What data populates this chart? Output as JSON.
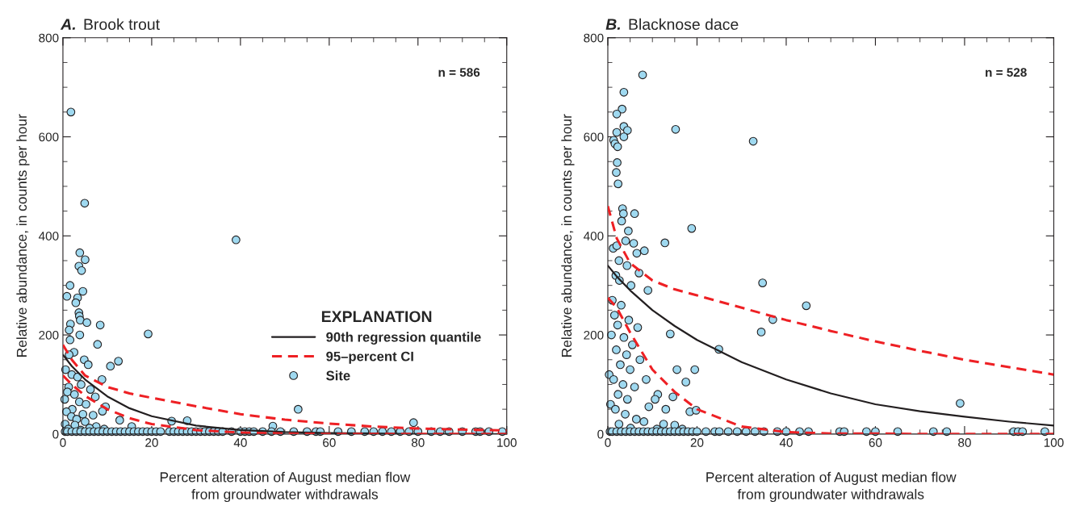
{
  "chart_data": [
    {
      "type": "scatter",
      "title": "A. Brook trout",
      "xlabel": "Percent alteration of August median flow\nfrom groundwater withdrawals",
      "ylabel": "Relative abundance, in counts per hour",
      "legend_title": "EXPLANATION",
      "legend": "right",
      "grid": false,
      "annotations": [
        "n = 586"
      ],
      "xlim": [
        0,
        100
      ],
      "xticks": [
        0,
        20,
        40,
        60,
        80,
        100
      ],
      "ylim": [
        0,
        800
      ],
      "yticks": [
        0,
        200,
        400,
        600,
        800
      ],
      "series": [
        {
          "name": "Site",
          "color": "#9fd9f0",
          "marker": "circle",
          "x": [
            1.8,
            4.9,
            39,
            3.8,
            5.0,
            3.6,
            4.2,
            1.6,
            0.9,
            4.5,
            3.3,
            2.9,
            3.6,
            3.7,
            3.9,
            5.4,
            1.7,
            1.4,
            8.4,
            19.2,
            3.8,
            1.6,
            7.8,
            2.5,
            1.4,
            4.8,
            5.7,
            10.7,
            12.5,
            0.6,
            2.0,
            3.3,
            8.8,
            4.1,
            1.3,
            6.2,
            1.0,
            2.6,
            7.3,
            0.4,
            3.7,
            5.2,
            9.6,
            2.1,
            8.9,
            0.8,
            4.5,
            6.8,
            12.8,
            1.9,
            3.1,
            5.0,
            0.5,
            2.7,
            7.5,
            9.3,
            15.5,
            24.5,
            28,
            53,
            79,
            47.3,
            1.2,
            4.0,
            6.0,
            0.5,
            1,
            2,
            3,
            4,
            5,
            6,
            7,
            8,
            9,
            10,
            11,
            12,
            13,
            14,
            15,
            16,
            17,
            18,
            19,
            20,
            21,
            22,
            24,
            25,
            26,
            27,
            28,
            29,
            30,
            31,
            32,
            33,
            34,
            35,
            36,
            38,
            40,
            41,
            42,
            43,
            45,
            47,
            49,
            52,
            55,
            57,
            58,
            62,
            65,
            68,
            70,
            72,
            74,
            76,
            78,
            80,
            83,
            85,
            87,
            90,
            93,
            94,
            96,
            99
          ],
          "values": [
            650,
            466,
            392,
            366,
            352,
            339,
            330,
            300,
            278,
            288,
            275,
            265,
            245,
            238,
            230,
            225,
            222,
            210,
            220,
            202,
            200,
            190,
            181,
            165,
            160,
            150,
            140,
            137,
            147,
            130,
            120,
            115,
            110,
            100,
            95,
            90,
            85,
            80,
            75,
            70,
            65,
            60,
            55,
            50,
            46,
            45,
            40,
            38,
            28,
            35,
            30,
            25,
            20,
            18,
            15,
            10,
            15,
            26,
            27,
            50,
            23,
            16,
            10,
            8,
            12,
            5,
            5,
            5,
            5,
            5,
            5,
            5,
            5,
            5,
            5,
            5,
            5,
            5,
            5,
            5,
            5,
            5,
            5,
            5,
            5,
            5,
            5,
            5,
            5,
            5,
            5,
            5,
            5,
            5,
            5,
            5,
            5,
            5,
            5,
            5,
            5,
            5,
            5,
            5,
            5,
            5,
            5,
            5,
            5,
            5,
            5,
            5,
            5,
            5,
            5,
            5,
            5,
            5,
            5,
            5,
            5,
            5,
            5,
            5,
            5,
            5,
            5,
            5,
            5,
            5
          ]
        },
        {
          "type": "line",
          "name": "90th regression quantile",
          "color": "#231f20",
          "line_style": "solid",
          "x": [
            0,
            2,
            5,
            10,
            15,
            20,
            30,
            40,
            50,
            60,
            70,
            80,
            90,
            100
          ],
          "values": [
            160,
            137,
            110,
            76,
            52,
            36,
            17,
            8,
            4,
            2,
            1,
            0,
            0,
            0
          ]
        },
        {
          "type": "line",
          "name": "95–percent CI",
          "color": "#ee2024",
          "line_style": "dashed",
          "x": [
            0,
            2,
            5,
            10,
            15,
            20,
            30,
            40,
            50,
            60,
            70,
            80,
            90,
            100
          ],
          "values": [
            180,
            150,
            118,
            95,
            82,
            73,
            56,
            40,
            29,
            21,
            15,
            11,
            9,
            7
          ]
        },
        {
          "type": "line",
          "color": "#ee2024",
          "line_style": "dashed",
          "x": [
            0,
            2,
            5,
            10,
            15,
            20,
            30,
            40,
            50,
            60,
            70,
            80,
            90,
            100
          ],
          "values": [
            118,
            100,
            77,
            50,
            32,
            20,
            8,
            3,
            1,
            0,
            0,
            0,
            0,
            0
          ]
        }
      ]
    },
    {
      "type": "scatter",
      "title": "B. Blacknose dace",
      "xlabel": "Percent alteration of August median flow\nfrom groundwater withdrawals",
      "ylabel": "Relative abundance, in counts per hour",
      "grid": false,
      "annotations": [
        "n = 528"
      ],
      "xlim": [
        0,
        100
      ],
      "xticks": [
        0,
        20,
        40,
        60,
        80,
        100
      ],
      "ylim": [
        0,
        800
      ],
      "yticks": [
        0,
        200,
        400,
        600,
        800
      ],
      "series": [
        {
          "color": "#9fd9f0",
          "marker": "circle",
          "x": [
            7.8,
            3.6,
            3.2,
            2.0,
            15.2,
            32.6,
            3.6,
            4.4,
            2.0,
            3.6,
            1.3,
            1.6,
            2.2,
            2.1,
            1.9,
            2.3,
            3.3,
            3.5,
            3.1,
            6.0,
            4.6,
            18.8,
            12.8,
            4.0,
            5.8,
            8.2,
            1.2,
            2.0,
            6.5,
            2.5,
            4.3,
            7.0,
            1.8,
            2.6,
            5.2,
            9.0,
            34.7,
            44.5,
            37,
            34.4,
            24.9,
            14,
            79,
            1.0,
            3.0,
            1.5,
            4.7,
            2.2,
            6.7,
            0.8,
            3.6,
            5.5,
            1.9,
            4.2,
            7.2,
            2.8,
            0.3,
            5.0,
            1.3,
            3.4,
            6.0,
            8.6,
            15.5,
            19.5,
            11.2,
            17.5,
            14.6,
            10.6,
            13,
            9.2,
            18.4,
            19.8,
            2.3,
            4.4,
            0.6,
            1.7,
            3.9,
            6.4,
            8.1,
            12.5,
            15,
            16.7,
            2.5,
            5.1,
            11,
            0.5,
            1,
            2,
            3,
            4,
            5,
            6,
            7,
            8,
            9,
            10,
            11,
            12,
            13,
            14,
            15,
            16,
            17,
            18,
            19,
            20,
            22,
            24,
            25,
            27,
            29,
            31,
            33,
            35,
            38,
            40,
            43,
            45,
            52,
            53,
            58,
            60,
            65,
            73,
            76,
            91,
            92,
            93,
            98
          ],
          "values": [
            725,
            690,
            656,
            646,
            615,
            591,
            621,
            613,
            609,
            600,
            593,
            586,
            580,
            548,
            528,
            505,
            455,
            445,
            430,
            445,
            410,
            415,
            386,
            390,
            385,
            370,
            375,
            380,
            365,
            350,
            340,
            325,
            320,
            310,
            300,
            290,
            305,
            259,
            231,
            206,
            171,
            202,
            62,
            270,
            260,
            240,
            230,
            220,
            215,
            200,
            195,
            180,
            170,
            160,
            150,
            140,
            120,
            130,
            110,
            100,
            95,
            110,
            130,
            130,
            80,
            105,
            75,
            70,
            50,
            55,
            45,
            48,
            80,
            70,
            60,
            50,
            40,
            30,
            25,
            20,
            18,
            10,
            20,
            12,
            10,
            5,
            5,
            5,
            5,
            5,
            5,
            5,
            5,
            5,
            5,
            5,
            5,
            5,
            5,
            5,
            5,
            5,
            5,
            5,
            5,
            5,
            5,
            5,
            5,
            5,
            5,
            5,
            5,
            5,
            5,
            5,
            5,
            5,
            5,
            5,
            5,
            5,
            5,
            5,
            5,
            5,
            5,
            5,
            5
          ]
        },
        {
          "type": "line",
          "color": "#231f20",
          "line_style": "solid",
          "x": [
            0,
            2,
            5,
            10,
            15,
            20,
            30,
            40,
            50,
            60,
            70,
            80,
            90,
            100
          ],
          "values": [
            340,
            318,
            290,
            250,
            218,
            190,
            145,
            110,
            82,
            60,
            46,
            35,
            25,
            17
          ]
        },
        {
          "type": "line",
          "color": "#ee2024",
          "line_style": "dashed",
          "x": [
            0,
            2,
            5,
            10,
            15,
            20,
            30,
            40,
            50,
            60,
            70,
            80,
            90,
            100
          ],
          "values": [
            460,
            395,
            345,
            310,
            292,
            280,
            255,
            230,
            208,
            187,
            168,
            150,
            135,
            120
          ]
        },
        {
          "type": "line",
          "color": "#ee2024",
          "line_style": "dashed",
          "x": [
            0,
            2,
            5,
            10,
            15,
            20,
            30,
            40,
            50,
            60,
            70,
            80,
            90,
            100
          ],
          "values": [
            275,
            255,
            205,
            130,
            85,
            50,
            15,
            4,
            1,
            1,
            0,
            0,
            0,
            0
          ]
        }
      ]
    }
  ]
}
